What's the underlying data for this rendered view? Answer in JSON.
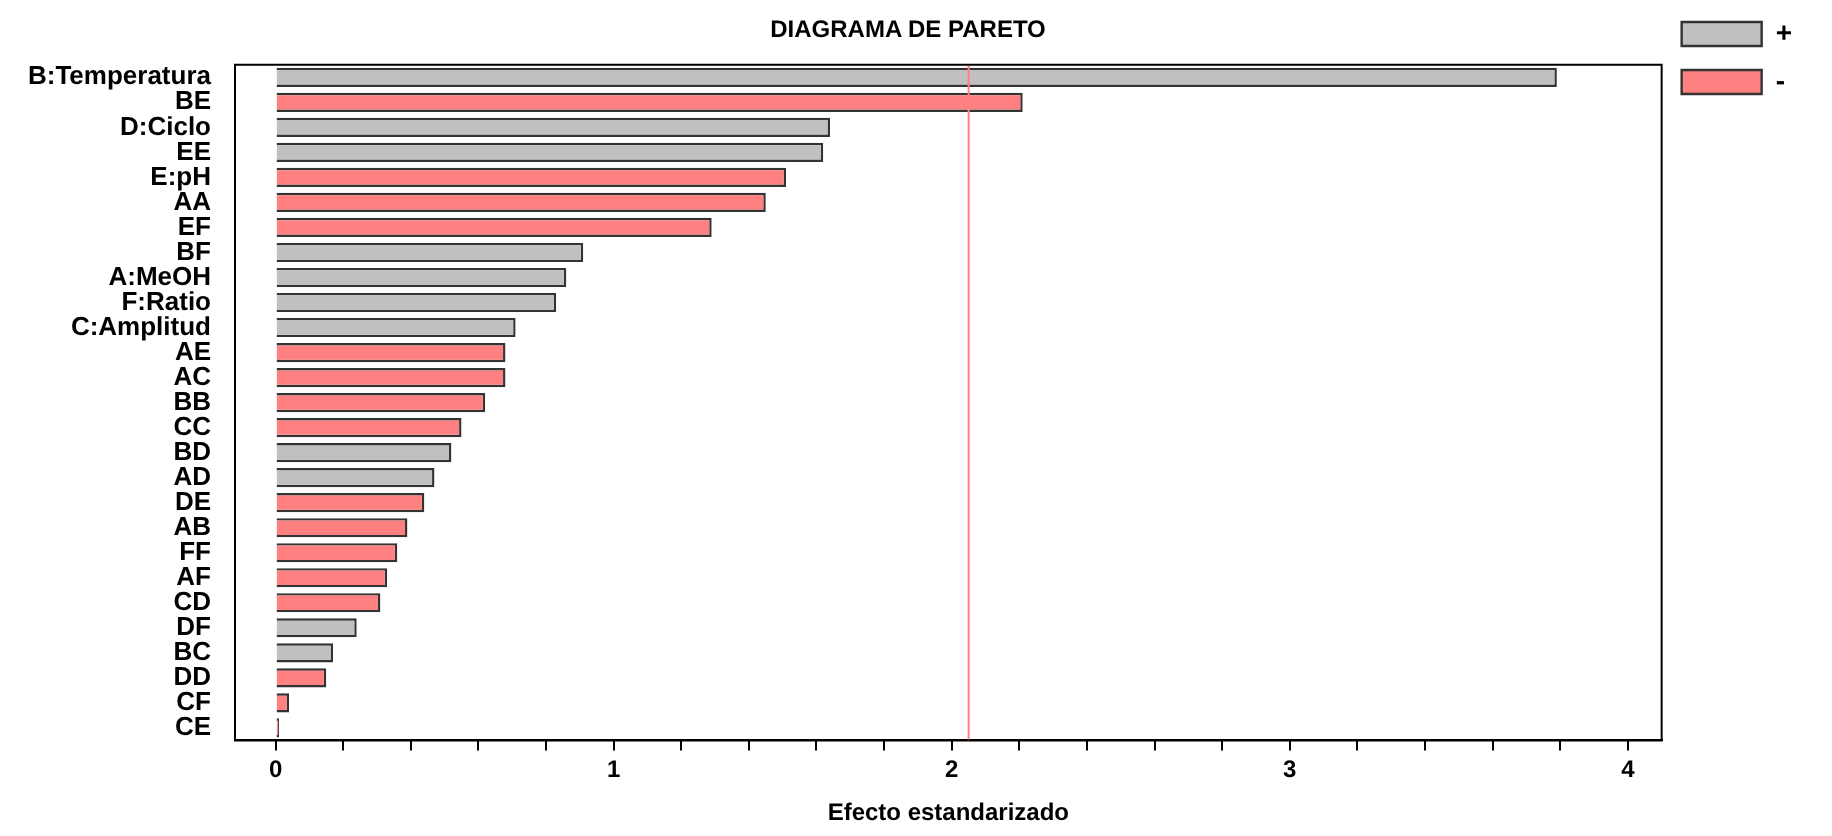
{
  "chart_data": {
    "type": "bar",
    "orientation": "horizontal",
    "title": "DIAGRAMA DE PARETO",
    "xlabel": "Efecto estandarizado",
    "categories": [
      "B:Temperatura",
      "BE",
      "D:Ciclo",
      "EE",
      "E:pH",
      "AA",
      "EF",
      "BF",
      "A:MeOH",
      "F:Ratio",
      "C:Amplitud",
      "AE",
      "AC",
      "BB",
      "CC",
      "BD",
      "AD",
      "DE",
      "AB",
      "FF",
      "AF",
      "CD",
      "DF",
      "BC",
      "DD",
      "CF",
      "CE"
    ],
    "series": [
      {
        "name": "+",
        "color": "#c0c0c0",
        "values": [
          3.79,
          null,
          1.64,
          1.62,
          null,
          null,
          null,
          0.91,
          0.86,
          0.83,
          0.71,
          null,
          null,
          null,
          null,
          0.52,
          0.47,
          null,
          null,
          null,
          null,
          null,
          0.24,
          0.17,
          null,
          null,
          null
        ]
      },
      {
        "name": "-",
        "color": "#ff8080",
        "values": [
          null,
          2.21,
          null,
          null,
          1.51,
          1.45,
          1.29,
          null,
          null,
          null,
          null,
          0.68,
          0.68,
          0.62,
          0.55,
          null,
          null,
          0.44,
          0.39,
          0.36,
          0.33,
          0.31,
          null,
          null,
          0.15,
          0.04,
          0.01
        ]
      }
    ],
    "xlim": [
      -0.12,
      4.1
    ],
    "xticks": [
      0,
      {
        "value": 0.2,
        "label": null
      },
      {
        "value": 0.4,
        "label": null
      },
      {
        "value": 0.6,
        "label": null
      },
      {
        "value": 0.8,
        "label": null
      },
      1,
      {
        "value": 1.2,
        "label": null
      },
      {
        "value": 1.4,
        "label": null
      },
      {
        "value": 1.6,
        "label": null
      },
      {
        "value": 1.8,
        "label": null
      },
      2,
      {
        "value": 2.2,
        "label": null
      },
      {
        "value": 2.4,
        "label": null
      },
      {
        "value": 2.6,
        "label": null
      },
      {
        "value": 2.8,
        "label": null
      },
      3,
      {
        "value": 3.2,
        "label": null
      },
      {
        "value": 3.4,
        "label": null
      },
      {
        "value": 3.6,
        "label": null
      },
      {
        "value": 3.8,
        "label": null
      },
      4
    ],
    "ref_lines": [
      {
        "axis": "x",
        "value": 2.05,
        "color": "#ff8080"
      }
    ],
    "grid": false,
    "legend": "top right"
  }
}
